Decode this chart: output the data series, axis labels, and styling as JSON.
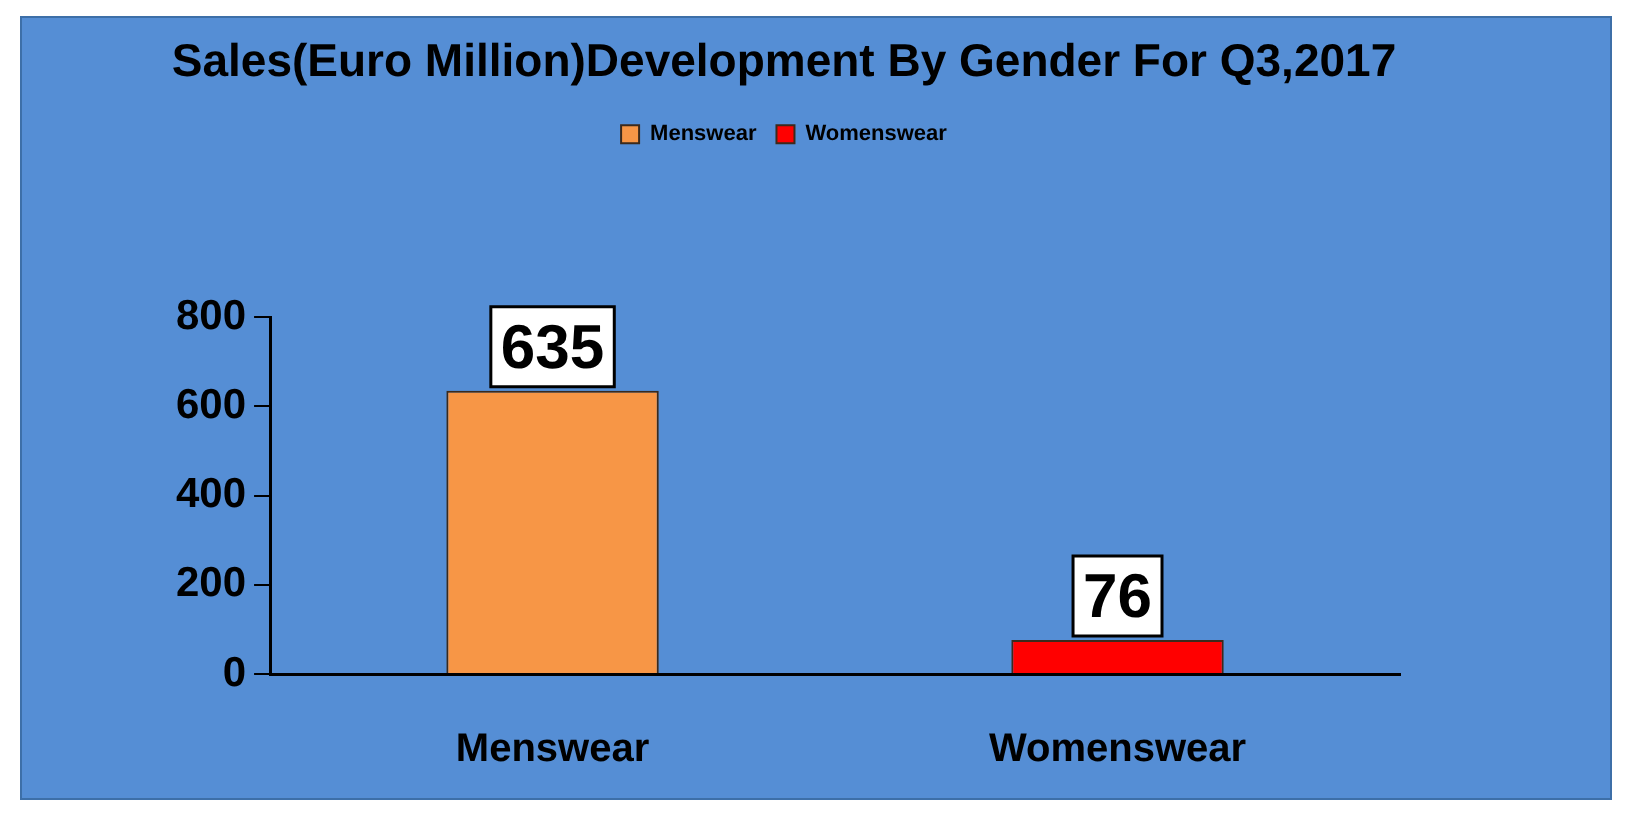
{
  "chart_data": {
    "type": "bar",
    "title": "Sales(Euro Million)Development By Gender For Q3,2017",
    "categories": [
      "Menswear",
      "Womenswear"
    ],
    "series": [
      {
        "name": "Menswear",
        "color": "#f79646",
        "values": [
          635,
          null
        ]
      },
      {
        "name": "Womenswear",
        "color": "#ff0000",
        "values": [
          null,
          76
        ]
      }
    ],
    "ylim": [
      0,
      800
    ],
    "yticks": [
      0,
      200,
      400,
      600,
      800
    ],
    "data_labels": true,
    "legend": "top"
  }
}
